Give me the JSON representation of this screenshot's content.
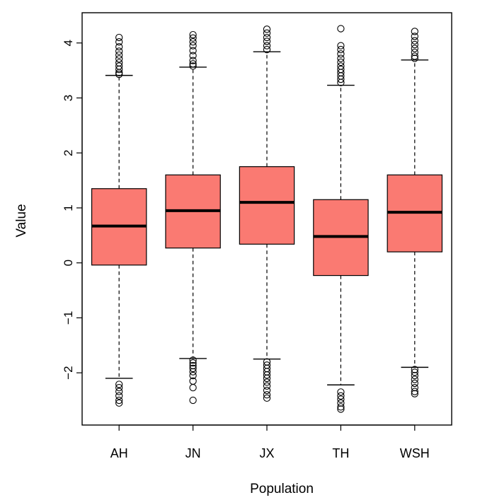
{
  "chart_data": {
    "type": "box",
    "categories": [
      "AH",
      "JN",
      "JX",
      "TH",
      "WSH"
    ],
    "xlabel": "Population",
    "ylabel": "Value",
    "ylim": [
      -2.95,
      4.55
    ],
    "yticks": [
      4,
      3,
      2,
      1,
      0,
      -1,
      -2
    ],
    "ytick_labels": [
      "4",
      "3",
      "2",
      "1",
      "0",
      "−1",
      "−2"
    ],
    "box_color": "#FA7A72",
    "series": [
      {
        "name": "AH",
        "whisker_low": -2.1,
        "q1": -0.04,
        "median": 0.67,
        "q3": 1.35,
        "whisker_high": 3.41,
        "outliers": [
          4.1,
          4.02,
          3.93,
          3.85,
          3.78,
          3.71,
          3.64,
          3.58,
          3.52,
          3.46,
          3.43,
          -2.21,
          -2.27,
          -2.34,
          -2.42,
          -2.5,
          -2.55
        ]
      },
      {
        "name": "JN",
        "whisker_low": -1.74,
        "q1": 0.27,
        "median": 0.95,
        "q3": 1.6,
        "whisker_high": 3.56,
        "outliers": [
          4.15,
          4.09,
          4.02,
          3.95,
          3.86,
          3.77,
          3.68,
          3.62,
          3.58,
          -1.77,
          -1.82,
          -1.87,
          -1.92,
          -1.98,
          -2.05,
          -2.15,
          -2.27,
          -2.5
        ]
      },
      {
        "name": "JX",
        "whisker_low": -1.75,
        "q1": 0.34,
        "median": 1.1,
        "q3": 1.75,
        "whisker_high": 3.84,
        "outliers": [
          4.25,
          4.18,
          4.1,
          4.03,
          3.95,
          3.88,
          -1.8,
          -1.86,
          -1.92,
          -1.98,
          -2.04,
          -2.1,
          -2.17,
          -2.24,
          -2.32,
          -2.4,
          -2.46
        ]
      },
      {
        "name": "TH",
        "whisker_low": -2.22,
        "q1": -0.23,
        "median": 0.48,
        "q3": 1.15,
        "whisker_high": 3.23,
        "outliers": [
          4.26,
          3.95,
          3.88,
          3.8,
          3.72,
          3.65,
          3.58,
          3.52,
          3.46,
          3.4,
          3.34,
          3.28,
          -2.35,
          -2.42,
          -2.48,
          -2.55,
          -2.62,
          -2.66
        ]
      },
      {
        "name": "WSH",
        "whisker_low": -1.9,
        "q1": 0.2,
        "median": 0.92,
        "q3": 1.6,
        "whisker_high": 3.69,
        "outliers": [
          4.21,
          4.12,
          4.04,
          3.97,
          3.9,
          3.83,
          3.76,
          3.72,
          -1.94,
          -1.99,
          -2.05,
          -2.12,
          -2.19,
          -2.27,
          -2.34,
          -2.38
        ]
      }
    ]
  }
}
